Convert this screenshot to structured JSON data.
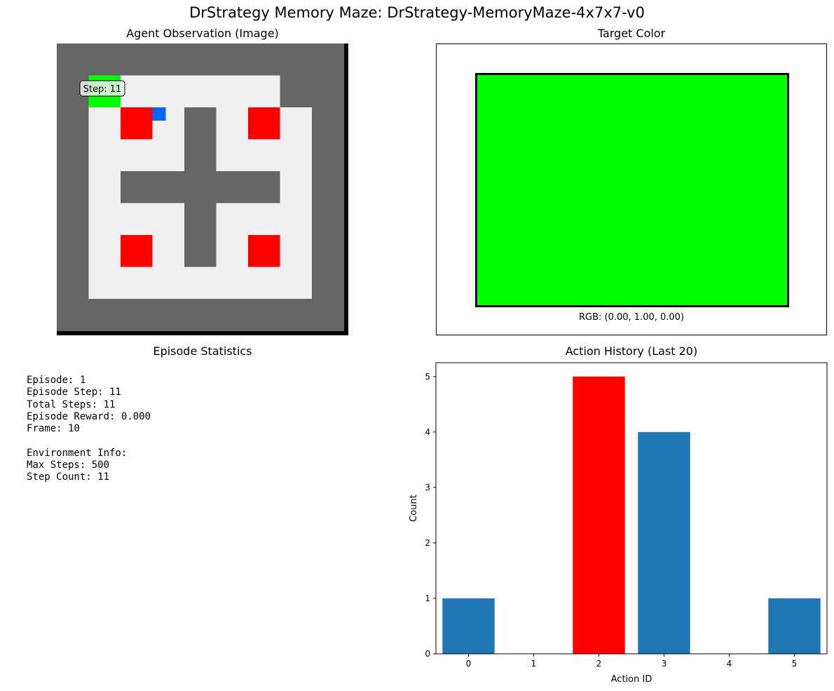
{
  "suptitle": "DrStrategy Memory Maze: DrStrategy-MemoryMaze-4x7x7-v0",
  "observation": {
    "title": "Agent Observation (Image)",
    "step_badge": "Step: 11",
    "grid_rows": [
      "WWWWWWWWW",
      "WGFFFFFWW",
      "WFRAWFRFW",
      "WFFFWFFFW",
      "WFWWWWWFW",
      "WFFFWFFFW",
      "WFRFWFRFW",
      "WFFFFFFFW",
      "WWWWWWWWW"
    ],
    "colors": {
      "wall": "#666666",
      "floor": "#f0f0f0",
      "red_target": "#ff0000",
      "green_target": "#00ff00",
      "agent": "#0066ff",
      "border": "#000000"
    }
  },
  "target": {
    "title": "Target Color",
    "rgb_label": "RGB: (0.00, 1.00, 0.00)",
    "color": "#00ff00"
  },
  "stats": {
    "title": "Episode Statistics",
    "lines": [
      "Episode: 1",
      "Episode Step: 11",
      "Total Steps: 11",
      "Episode Reward: 0.000",
      "Frame: 10",
      "",
      "Environment Info:",
      "Max Steps: 500",
      "Step Count: 11"
    ]
  },
  "chart_data": {
    "type": "bar",
    "title": "Action History (Last 20)",
    "xlabel": "Action ID",
    "ylabel": "Count",
    "categories": [
      0,
      1,
      2,
      3,
      4,
      5
    ],
    "values": [
      1,
      0,
      5,
      4,
      0,
      1
    ],
    "highlight_index": 2,
    "bar_color": "#1f77b4",
    "highlight_color": "#ff0000",
    "xlim": [
      -0.5,
      5.5
    ],
    "ylim": [
      0,
      5.25
    ],
    "yticks": [
      0,
      1,
      2,
      3,
      4,
      5
    ],
    "grid": false
  }
}
